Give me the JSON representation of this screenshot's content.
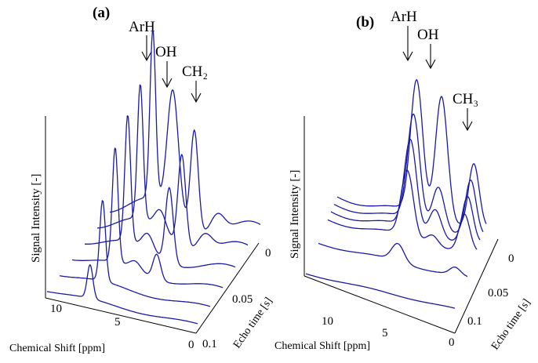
{
  "panels": [
    {
      "id": "a",
      "label": "(a)",
      "ylabel": "Signal Intensity [-]",
      "xlabel": "Chemical Shift [ppm]",
      "zlabel": "Echo time [s]",
      "x_ticks": [
        "10",
        "5",
        "0"
      ],
      "z_ticks": [
        "0",
        "0.05",
        "0.1"
      ],
      "peaks": [
        "ArH",
        "OH",
        "CH₂"
      ]
    },
    {
      "id": "b",
      "label": "(b)",
      "ylabel": "Signal Intensity [-]",
      "xlabel": "Chemical Shift [ppm]",
      "zlabel": "Echo time [s]",
      "x_ticks": [
        "10",
        "5",
        "0"
      ],
      "z_ticks": [
        "0",
        "0.05",
        "0.1"
      ],
      "peaks": [
        "ArH",
        "OH",
        "CH₃"
      ]
    }
  ],
  "chart_data": [
    {
      "type": "line",
      "panel": "(a)",
      "xlabel": "Chemical Shift [ppm]",
      "ylabel": "Signal Intensity [-]",
      "zlabel": "Echo time [s]",
      "xlim": [
        10,
        0
      ],
      "zlim": [
        0,
        0.1
      ],
      "colors": {
        "curve": "#1a1aa6",
        "axis": "#000000"
      },
      "peak_labels": [
        "ArH",
        "OH",
        "CH₂"
      ],
      "series": [
        {
          "echo_time": 0.0,
          "baseline": 0.15,
          "peaks": [
            {
              "x": 7.0,
              "h": 1.0,
              "w": 0.28
            },
            {
              "x": 5.6,
              "h": 0.72,
              "w": 0.55
            },
            {
              "x": 4.1,
              "h": 0.6,
              "w": 0.38
            },
            {
              "x": 2.5,
              "h": 0.12,
              "w": 0.7
            }
          ]
        },
        {
          "echo_time": 0.02,
          "baseline": 0.12,
          "peaks": [
            {
              "x": 7.0,
              "h": 0.8,
              "w": 0.28
            },
            {
              "x": 5.6,
              "h": 0.12,
              "w": 0.55
            },
            {
              "x": 4.1,
              "h": 0.55,
              "w": 0.38
            },
            {
              "x": 2.5,
              "h": 0.1,
              "w": 0.7
            }
          ]
        },
        {
          "echo_time": 0.04,
          "baseline": 0.08,
          "peaks": [
            {
              "x": 7.0,
              "h": 0.75,
              "w": 0.28
            },
            {
              "x": 5.6,
              "h": 0.1,
              "w": 0.55
            },
            {
              "x": 4.1,
              "h": 0.45,
              "w": 0.38
            }
          ]
        },
        {
          "echo_time": 0.06,
          "baseline": 0.05,
          "peaks": [
            {
              "x": 7.0,
              "h": 0.68,
              "w": 0.28
            },
            {
              "x": 5.6,
              "h": 0.05,
              "w": 0.55
            },
            {
              "x": 4.1,
              "h": 0.15,
              "w": 0.38
            }
          ]
        },
        {
          "echo_time": 0.08,
          "baseline": 0.03,
          "peaks": [
            {
              "x": 7.0,
              "h": 0.48,
              "w": 0.28
            }
          ]
        },
        {
          "echo_time": 0.1,
          "baseline": 0.02,
          "peaks": [
            {
              "x": 7.0,
              "h": 0.2,
              "w": 0.28
            }
          ]
        }
      ]
    },
    {
      "type": "line",
      "panel": "(b)",
      "xlabel": "Chemical Shift [ppm]",
      "ylabel": "Signal Intensity [-]",
      "zlabel": "Echo time [s]",
      "xlim": [
        12,
        0
      ],
      "zlim": [
        0,
        0.1
      ],
      "colors": {
        "curve": "#1a1aa6",
        "axis": "#000000"
      },
      "peak_labels": [
        "ArH",
        "OH",
        "CH₃"
      ],
      "series": [
        {
          "echo_time": 0.0,
          "baseline": 0.05,
          "peaks": [
            {
              "x": 5.6,
              "h": 0.9,
              "w": 0.7
            },
            {
              "x": 3.6,
              "h": 0.86,
              "w": 0.7
            },
            {
              "x": 1.0,
              "h": 0.42,
              "w": 0.6
            }
          ]
        },
        {
          "echo_time": 0.01,
          "baseline": 0.05,
          "peaks": [
            {
              "x": 5.6,
              "h": 0.72,
              "w": 0.7
            },
            {
              "x": 3.6,
              "h": 0.3,
              "w": 0.7
            },
            {
              "x": 1.0,
              "h": 0.36,
              "w": 0.6
            }
          ]
        },
        {
          "echo_time": 0.02,
          "baseline": 0.05,
          "peaks": [
            {
              "x": 5.6,
              "h": 0.6,
              "w": 0.7
            },
            {
              "x": 3.6,
              "h": 0.2,
              "w": 0.7
            },
            {
              "x": 1.0,
              "h": 0.3,
              "w": 0.6
            }
          ]
        },
        {
          "echo_time": 0.03,
          "baseline": 0.04,
          "peaks": [
            {
              "x": 5.6,
              "h": 0.45,
              "w": 0.7
            },
            {
              "x": 3.6,
              "h": 0.08,
              "w": 0.7
            },
            {
              "x": 1.0,
              "h": 0.24,
              "w": 0.6
            }
          ]
        },
        {
          "echo_time": 0.06,
          "baseline": 0.02,
          "peaks": [
            {
              "x": 5.6,
              "h": 0.12,
              "w": 0.7
            },
            {
              "x": 1.0,
              "h": 0.05,
              "w": 0.6
            }
          ]
        },
        {
          "echo_time": 0.1,
          "baseline": 0.01,
          "peaks": []
        }
      ]
    }
  ]
}
